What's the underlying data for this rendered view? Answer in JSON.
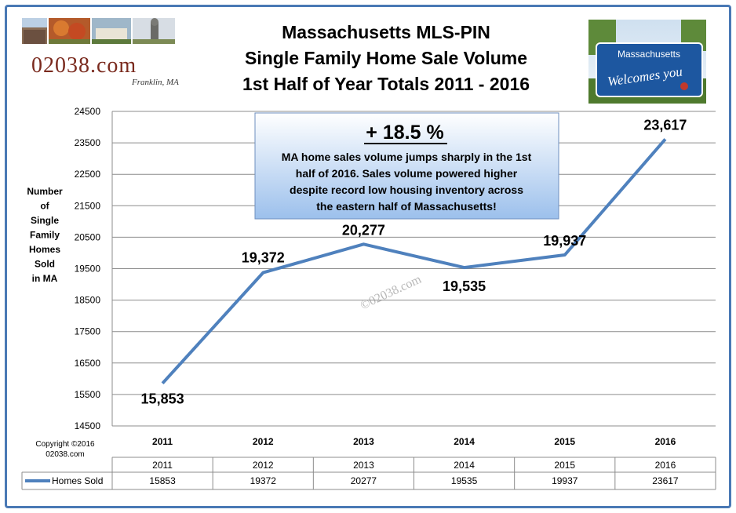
{
  "logo": {
    "text": "02038.com",
    "tagline": "Franklin, MA"
  },
  "sign": {
    "line1": "Massachusetts",
    "line2": "Welcomes you"
  },
  "watermark": "©02038.com",
  "copyright": {
    "line1": "Copyright ©2016",
    "line2": "02038.com"
  },
  "callout": {
    "headline": "+ 18.5 %",
    "lines": [
      "MA home sales volume jumps sharply in the 1st",
      "half of 2016.  Sales volume powered higher",
      "despite record low housing inventory across",
      "the eastern half of Massachusetts!"
    ]
  },
  "colors": {
    "line": "#4f81bd",
    "frame": "#4a79b5",
    "callout_top": "#ffffff",
    "callout_bottom": "#9cc0ec"
  },
  "chart_data": {
    "type": "line",
    "title": [
      "Massachusetts  MLS-PIN",
      "Single Family Home Sale Volume",
      "1st Half of Year Totals  2011 - 2016"
    ],
    "ylabel": [
      "Number",
      "of",
      "Single",
      "Family",
      "Homes",
      "Sold",
      "in MA"
    ],
    "xlabel": "",
    "categories": [
      "2011",
      "2012",
      "2013",
      "2014",
      "2015",
      "2016"
    ],
    "series": [
      {
        "name": "Homes Sold",
        "values": [
          15853,
          19372,
          20277,
          19535,
          19937,
          23617
        ],
        "labels": [
          "15,853",
          "19,372",
          "20,277",
          "19,535",
          "19,937",
          "23,617"
        ]
      }
    ],
    "ylim": [
      14500,
      24500
    ],
    "yticks": [
      24500,
      23500,
      22500,
      21500,
      20500,
      19500,
      18500,
      17500,
      16500,
      15500,
      14500
    ],
    "grid": true,
    "data_table": true
  }
}
